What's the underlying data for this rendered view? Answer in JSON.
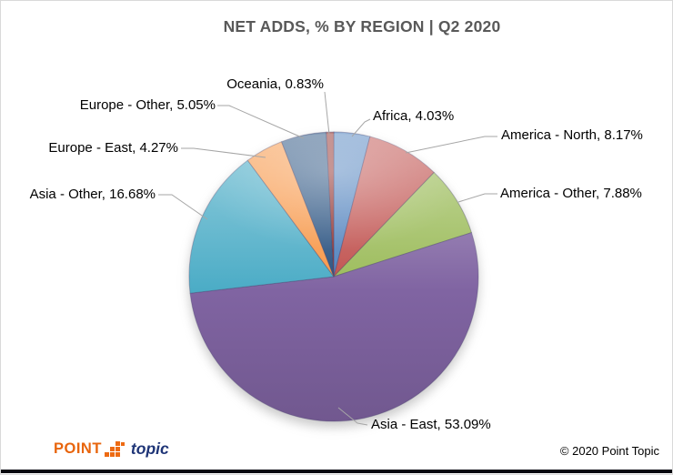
{
  "title": "NET ADDS, % BY REGION | Q2 2020",
  "chart_data": {
    "type": "pie",
    "title": "NET ADDS, % BY REGION | Q2 2020",
    "start_angle_deg": 0,
    "direction": "clockwise",
    "legend_position": "none",
    "label_format": "{label}, {value}%",
    "slices": [
      {
        "label": "Africa",
        "value": 4.03,
        "color": "#4F81BD"
      },
      {
        "label": "America - North",
        "value": 8.17,
        "color": "#C0504D"
      },
      {
        "label": "America - Other",
        "value": 7.88,
        "color": "#9BBB59"
      },
      {
        "label": "Asia - East",
        "value": 53.09,
        "color": "#8064A2"
      },
      {
        "label": "Asia - Other",
        "value": 16.68,
        "color": "#4BACC6"
      },
      {
        "label": "Europe - East",
        "value": 4.27,
        "color": "#F79646"
      },
      {
        "label": "Europe - Other",
        "value": 5.05,
        "color": "#27507F"
      },
      {
        "label": "Oceania",
        "value": 0.83,
        "color": "#8E2B28"
      }
    ]
  },
  "style": {
    "title_color": "#595959",
    "leader_line_color": "#A6A6A6",
    "label_color": "#000000"
  },
  "footer": {
    "logo_point": "POINT",
    "logo_topic": "topic",
    "logo_orange": "#E8650D",
    "logo_blue": "#1F3577",
    "copyright": "© 2020 Point Topic",
    "bar_color": "#070710"
  }
}
